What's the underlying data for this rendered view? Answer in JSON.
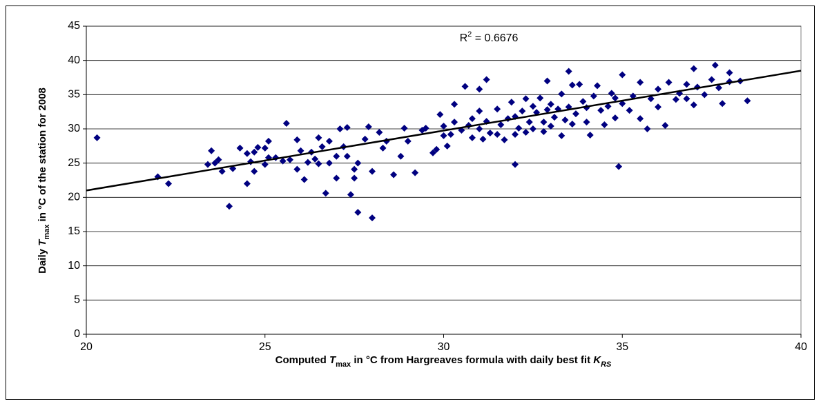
{
  "chart_data": {
    "type": "scatter",
    "x_label": [
      "Computed ",
      "T",
      "max",
      " in °C from Hargreaves formula with daily best fit ",
      "K",
      "RS"
    ],
    "y_label": [
      "Daily ",
      "T",
      "max",
      " in °C of the station for 2008"
    ],
    "annotation": [
      "R",
      "2",
      " = 0.6676"
    ],
    "xlim": [
      20,
      40
    ],
    "xticks": [
      20,
      25,
      30,
      35,
      40
    ],
    "ylim": [
      0,
      45
    ],
    "yticks": [
      0,
      5,
      10,
      15,
      20,
      25,
      30,
      35,
      40,
      45
    ],
    "grid": true,
    "color": "#000080",
    "trend_line": {
      "x": [
        20,
        40
      ],
      "y": [
        21,
        38.5
      ],
      "color": "#000000"
    },
    "series": [
      {
        "name": "Daily Tmax",
        "color": "#000080",
        "x": [
          20.3,
          22,
          22.3,
          23.4,
          23.5,
          23.6,
          23.7,
          23.8,
          24,
          24.1,
          24.3,
          24.5,
          24.5,
          24.6,
          24.7,
          24.7,
          24.8,
          25,
          25,
          25.1,
          25.1,
          25.3,
          25.5,
          25.6,
          25.7,
          25.9,
          25.9,
          26,
          26.1,
          26.2,
          26.3,
          26.4,
          26.5,
          26.5,
          26.6,
          26.7,
          26.8,
          26.8,
          27,
          27,
          27.1,
          27.2,
          27.3,
          27.3,
          27.4,
          27.5,
          27.5,
          27.6,
          27.6,
          27.8,
          27.9,
          28,
          28,
          28.2,
          28.3,
          28.4,
          28.6,
          28.8,
          28.9,
          29,
          29.2,
          29.4,
          29.5,
          29.7,
          29.8,
          29.9,
          30,
          30,
          30.1,
          30.2,
          30.3,
          30.3,
          30.5,
          30.6,
          30.7,
          30.8,
          30.8,
          31,
          31,
          31.1,
          31.2,
          31.3,
          31.5,
          31.5,
          31.6,
          31.7,
          31.8,
          31.9,
          32,
          32,
          32,
          32.1,
          32.2,
          32.3,
          32.3,
          32.4,
          32.5,
          32.5,
          32.6,
          32.7,
          32.8,
          32.8,
          32.9,
          33,
          33,
          33.1,
          33.2,
          33.3,
          33.3,
          33.4,
          33.5,
          33.5,
          33.6,
          33.7,
          33.8,
          33.9,
          34,
          34,
          34.1,
          34.2,
          34.3,
          34.4,
          34.5,
          34.6,
          34.7,
          34.8,
          34.9,
          35,
          35,
          35.2,
          35.3,
          35.5,
          35.5,
          35.7,
          35.8,
          36,
          36,
          36.2,
          36.3,
          36.5,
          36.6,
          36.8,
          36.8,
          37,
          37,
          37.1,
          37.3,
          37.5,
          37.6,
          37.7,
          37.8,
          38,
          38,
          38.3,
          38.5,
          31.2,
          31,
          32.9,
          33.6,
          34.8
        ],
        "values": [
          28.7,
          23,
          22,
          24.8,
          26.8,
          25,
          25.5,
          23.8,
          18.7,
          24.2,
          27.2,
          26.4,
          22,
          25.2,
          23.8,
          26.6,
          27.3,
          24.8,
          27.2,
          28.2,
          25.8,
          25.8,
          25.3,
          30.8,
          25.5,
          24.1,
          28.4,
          26.8,
          22.6,
          25.1,
          26.6,
          25.6,
          24.9,
          28.7,
          27.4,
          20.6,
          25,
          28.2,
          22.8,
          26,
          30,
          27.4,
          26,
          30.2,
          20.4,
          24.1,
          22.8,
          17.8,
          25,
          28.5,
          30.3,
          23.8,
          17,
          29.5,
          27.2,
          28.2,
          23.3,
          26,
          30.1,
          28.2,
          23.6,
          29.8,
          30.1,
          26.5,
          27,
          32.1,
          29,
          30.4,
          27.5,
          29.2,
          31,
          33.6,
          29.8,
          36.2,
          30.5,
          28.7,
          31.5,
          30,
          32.6,
          28.5,
          31.1,
          29.4,
          32.9,
          29.2,
          30.6,
          28.4,
          31.5,
          33.9,
          29.2,
          24.8,
          31.8,
          30.1,
          32.6,
          34.4,
          29.5,
          31,
          33.3,
          30,
          32.4,
          34.5,
          31,
          29.6,
          32.8,
          30.4,
          33.6,
          31.7,
          32.9,
          35.1,
          29,
          31.3,
          38.4,
          33.2,
          30.7,
          32.2,
          36.5,
          34,
          31,
          33.1,
          29.1,
          34.8,
          36.3,
          32.7,
          30.6,
          33.3,
          35.2,
          31.6,
          24.5,
          37.9,
          33.7,
          32.7,
          34.8,
          36.8,
          31.5,
          30,
          34.4,
          35.8,
          33.2,
          30.5,
          36.8,
          34.3,
          35.2,
          36.5,
          34.4,
          38.8,
          33.5,
          36.1,
          35,
          37.2,
          39.3,
          36,
          33.7,
          36.9,
          38.2,
          37,
          34.1,
          37.2,
          35.8,
          37,
          36.4,
          34.5
        ]
      }
    ]
  }
}
